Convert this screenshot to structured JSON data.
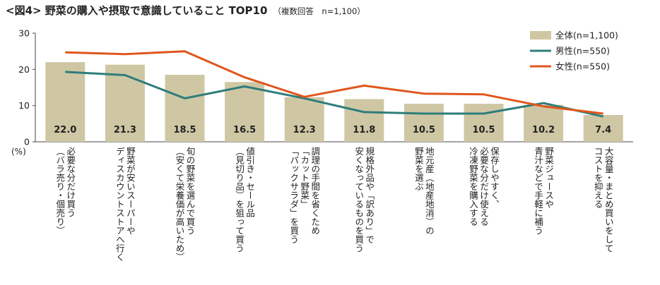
{
  "title": "<図4> 野菜の購入や摂取で意識していること TOP10",
  "subtitle": "（複数回答　n=1,100）",
  "chart_data": {
    "type": "bar",
    "y_unit": "(%)",
    "ylim": [
      0,
      30
    ],
    "yticks": [
      "0",
      "10",
      "20",
      "30"
    ],
    "grid": false,
    "legend_position": "top-right",
    "categories": [
      "必要な分だけ買う\n（バラ売り・個売り）",
      "野菜が安いスーパーや\nディスカウントストアへ行く",
      "旬の野菜を選んで買う\n（安くて栄養価が高いため）",
      "値引き・セール品\n（見切り品）を狙って買う",
      "調理の手間を省くため\n「カット野菜」\n「パックサラダ」を買う",
      "規格外品や「訳あり」で\n安くなっているものを買う",
      "地元産（地産地消）の\n野菜を選ぶ",
      "保存しやすく、\n必要な分だけ使える\n冷凍野菜を購入する",
      "野菜ジュースや\n青汁などで手軽に補う",
      "大容量・まとめ買いをして\nコストを抑える"
    ],
    "series": [
      {
        "name": "全体(n=1,100)",
        "kind": "bar",
        "color": "#CFC7A4",
        "values": [
          22.0,
          21.3,
          18.5,
          16.5,
          12.3,
          11.8,
          10.5,
          10.5,
          10.2,
          7.4
        ],
        "labels": [
          "22.0",
          "21.3",
          "18.5",
          "16.5",
          "12.3",
          "11.8",
          "10.5",
          "10.5",
          "10.2",
          "7.4"
        ]
      },
      {
        "name": "男性(n=550)",
        "kind": "line",
        "color": "#2E7D7B",
        "values": [
          19.3,
          18.4,
          12.0,
          15.3,
          12.0,
          8.2,
          7.8,
          7.8,
          10.7,
          7.0
        ]
      },
      {
        "name": "女性(n=550)",
        "kind": "line",
        "color": "#E0561C",
        "values": [
          24.7,
          24.2,
          25.0,
          17.8,
          12.4,
          15.5,
          13.3,
          13.1,
          9.8,
          7.8
        ]
      }
    ]
  }
}
